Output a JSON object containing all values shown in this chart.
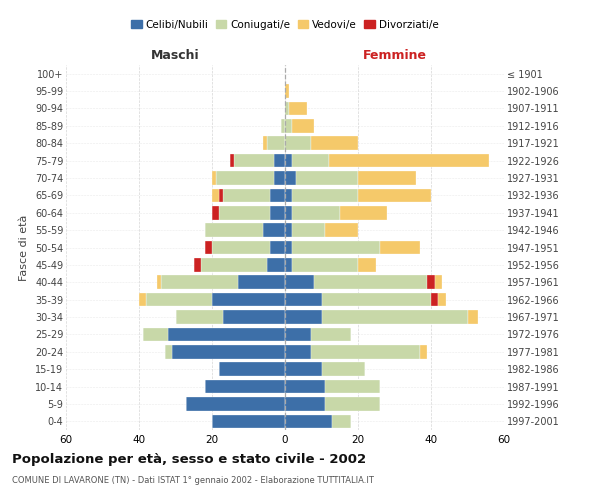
{
  "age_groups": [
    "0-4",
    "5-9",
    "10-14",
    "15-19",
    "20-24",
    "25-29",
    "30-34",
    "35-39",
    "40-44",
    "45-49",
    "50-54",
    "55-59",
    "60-64",
    "65-69",
    "70-74",
    "75-79",
    "80-84",
    "85-89",
    "90-94",
    "95-99",
    "100+"
  ],
  "birth_years": [
    "1997-2001",
    "1992-1996",
    "1987-1991",
    "1982-1986",
    "1977-1981",
    "1972-1976",
    "1967-1971",
    "1962-1966",
    "1957-1961",
    "1952-1956",
    "1947-1951",
    "1942-1946",
    "1937-1941",
    "1932-1936",
    "1927-1931",
    "1922-1926",
    "1917-1921",
    "1912-1916",
    "1907-1911",
    "1902-1906",
    "≤ 1901"
  ],
  "male_celibi": [
    20,
    27,
    22,
    18,
    31,
    32,
    17,
    20,
    13,
    5,
    4,
    6,
    4,
    4,
    3,
    3,
    0,
    0,
    0,
    0,
    0
  ],
  "male_coniugati": [
    0,
    0,
    0,
    0,
    2,
    7,
    13,
    18,
    21,
    18,
    16,
    16,
    14,
    13,
    16,
    11,
    5,
    1,
    0,
    0,
    0
  ],
  "male_vedovi": [
    0,
    0,
    0,
    0,
    0,
    0,
    0,
    2,
    1,
    0,
    0,
    0,
    0,
    2,
    1,
    0,
    1,
    0,
    0,
    0,
    0
  ],
  "male_divorziati": [
    0,
    0,
    0,
    0,
    0,
    0,
    0,
    0,
    0,
    2,
    2,
    0,
    2,
    1,
    0,
    1,
    0,
    0,
    0,
    0,
    0
  ],
  "female_nubili": [
    13,
    11,
    11,
    10,
    7,
    7,
    10,
    10,
    8,
    2,
    2,
    2,
    2,
    2,
    3,
    2,
    0,
    0,
    0,
    0,
    0
  ],
  "female_coniugate": [
    5,
    15,
    15,
    12,
    30,
    11,
    40,
    30,
    31,
    18,
    24,
    9,
    13,
    18,
    17,
    10,
    7,
    2,
    1,
    0,
    0
  ],
  "female_vedove": [
    0,
    0,
    0,
    0,
    2,
    0,
    3,
    2,
    2,
    5,
    11,
    9,
    13,
    20,
    16,
    44,
    13,
    6,
    5,
    1,
    0
  ],
  "female_divorziate": [
    0,
    0,
    0,
    0,
    0,
    0,
    0,
    2,
    2,
    0,
    0,
    0,
    0,
    0,
    0,
    0,
    0,
    0,
    0,
    0,
    0
  ],
  "color_celibi": "#3d6fa8",
  "color_coniugati": "#c8d8a8",
  "color_vedovi": "#f5c96a",
  "color_divorziati": "#cc2222",
  "legend_labels": [
    "Celibi/Nubili",
    "Coniugati/e",
    "Vedovi/e",
    "Divorziati/e"
  ],
  "age_label": "Fasce di età",
  "maschi_label": "Maschi",
  "femmine_label": "Femmine",
  "title": "Popolazione per età, sesso e stato civile - 2002",
  "subtitle": "COMUNE DI LAVARONE (TN) - Dati ISTAT 1° gennaio 2002 - Elaborazione TUTTITALIA.IT",
  "xlim": 60
}
